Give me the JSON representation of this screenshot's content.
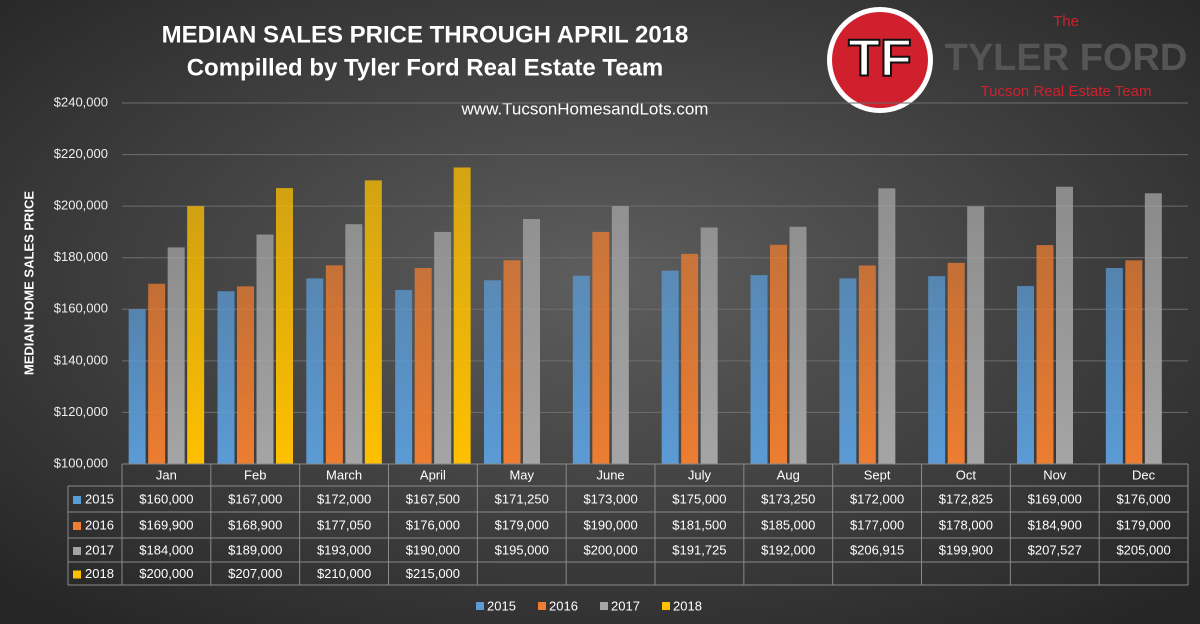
{
  "chart_data": {
    "type": "bar",
    "title": "MEDIAN SALES PRICE THROUGH APRIL 2018",
    "subtitle": "Compilled by Tyler Ford Real Estate Team",
    "annotation": "www.TucsonHomesandLots.com",
    "y_label": "MEDIAN HOME SALES PRICE",
    "categories": [
      "Jan",
      "Feb",
      "March",
      "April",
      "May",
      "June",
      "July",
      "Aug",
      "Sept",
      "Oct",
      "Nov",
      "Dec"
    ],
    "series": [
      {
        "name": "2015",
        "color": "#5b9bd5",
        "values": [
          160000,
          167000,
          172000,
          167500,
          171250,
          173000,
          175000,
          173250,
          172000,
          172825,
          169000,
          176000
        ],
        "value_labels": [
          "$160,000",
          "$167,000",
          "$172,000",
          "$167,500",
          "$171,250",
          "$173,000",
          "$175,000",
          "$173,250",
          "$172,000",
          "$172,825",
          "$169,000",
          "$176,000"
        ]
      },
      {
        "name": "2016",
        "color": "#ed7d31",
        "values": [
          169900,
          168900,
          177050,
          176000,
          179000,
          190000,
          181500,
          185000,
          177000,
          178000,
          184900,
          179000
        ],
        "value_labels": [
          "$169,900",
          "$168,900",
          "$177,050",
          "$176,000",
          "$179,000",
          "$190,000",
          "$181,500",
          "$185,000",
          "$177,000",
          "$178,000",
          "$184,900",
          "$179,000"
        ]
      },
      {
        "name": "2017",
        "color": "#a5a5a5",
        "values": [
          184000,
          189000,
          193000,
          190000,
          195000,
          200000,
          191725,
          192000,
          206915,
          199900,
          207527,
          205000
        ],
        "value_labels": [
          "$184,000",
          "$189,000",
          "$193,000",
          "$190,000",
          "$195,000",
          "$200,000",
          "$191,725",
          "$192,000",
          "$206,915",
          "$199,900",
          "$207,527",
          "$205,000"
        ]
      },
      {
        "name": "2018",
        "color": "#ffc000",
        "values": [
          200000,
          207000,
          210000,
          215000,
          null,
          null,
          null,
          null,
          null,
          null,
          null,
          null
        ],
        "value_labels": [
          "$200,000",
          "$207,000",
          "$210,000",
          "$215,000",
          null,
          null,
          null,
          null,
          null,
          null,
          null,
          null
        ]
      }
    ],
    "ylim": [
      100000,
      240000
    ],
    "yticks": [
      {
        "value": 100000,
        "label": "$100,000"
      },
      {
        "value": 120000,
        "label": "$120,000"
      },
      {
        "value": 140000,
        "label": "$140,000"
      },
      {
        "value": 160000,
        "label": "$160,000"
      },
      {
        "value": 180000,
        "label": "$180,000"
      },
      {
        "value": 200000,
        "label": "$200,000"
      },
      {
        "value": 220000,
        "label": "$220,000"
      },
      {
        "value": 240000,
        "label": "$240,000"
      }
    ],
    "grid": true,
    "legend": "bottom"
  },
  "logo": {
    "initials": "TF",
    "prefix": "The",
    "name": "TYLER FORD",
    "tagline": "Tucson Real Estate Team"
  }
}
